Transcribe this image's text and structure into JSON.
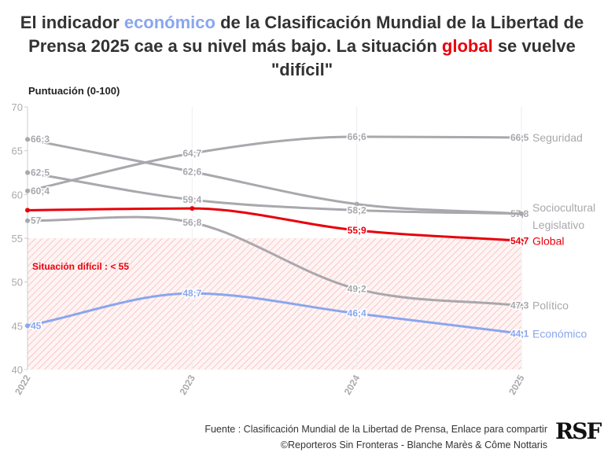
{
  "title": {
    "p1": "El indicador ",
    "eco": "económico",
    "p2": " de la Clasificación Mundial de la Libertad de Prensa 2025 cae a su nivel más bajo. La situación ",
    "glo": "global",
    "p3": " se vuelve \"difícil\""
  },
  "source": {
    "line1": "Fuente : Clasificación Mundial de la Libertad de Prensa, Enlace para compartir",
    "line2": "©Reporteros Sin Fronteras - Blanche Marès & Côme Nottaris"
  },
  "logo": "RSF",
  "chart_data": {
    "type": "line",
    "ylabel": "Puntuación (0-100)",
    "ylim": [
      40,
      70
    ],
    "yticks": [
      "40",
      "45",
      "50",
      "55",
      "60",
      "65",
      "70"
    ],
    "x": [
      "2022",
      "2023",
      "2024",
      "2025"
    ],
    "zone": {
      "label": "Situación difícil : < 55",
      "from": 40,
      "to": 55
    },
    "series": [
      {
        "name": "Seguridad",
        "color": "#a8a8ad",
        "values": [
          60.4,
          64.7,
          66.6,
          66.5
        ],
        "labels": [
          "60;4",
          "64;7",
          "66;6",
          "66,5"
        ]
      },
      {
        "name": "Sociocultural",
        "color": "#a8a8ad",
        "values": [
          66.3,
          62.6,
          58.9,
          57.8
        ],
        "labels": [
          "66;3",
          "62;6",
          null,
          "57,8"
        ]
      },
      {
        "name": "Legislativo",
        "color": "#a8a8ad",
        "values": [
          62.5,
          59.4,
          58.2,
          57.8
        ],
        "labels": [
          "62;5",
          "59;4",
          "58;2",
          null
        ]
      },
      {
        "name": "Político",
        "color": "#a8a8ad",
        "values": [
          57,
          56.8,
          49.2,
          47.3
        ],
        "labels": [
          "57",
          "56;8",
          "49;2",
          "47,3"
        ]
      },
      {
        "name": "Económico",
        "color": "#8aa6ee",
        "values": [
          45,
          48.7,
          46.4,
          44.1
        ],
        "labels": [
          "45",
          "48;7",
          "46;4",
          "44,1"
        ]
      },
      {
        "name": "Global",
        "color": "#e8000b",
        "values": [
          58.2,
          58.4,
          55.9,
          54.7
        ],
        "labels": [
          null,
          null,
          "55;9",
          "54,7"
        ]
      }
    ]
  }
}
